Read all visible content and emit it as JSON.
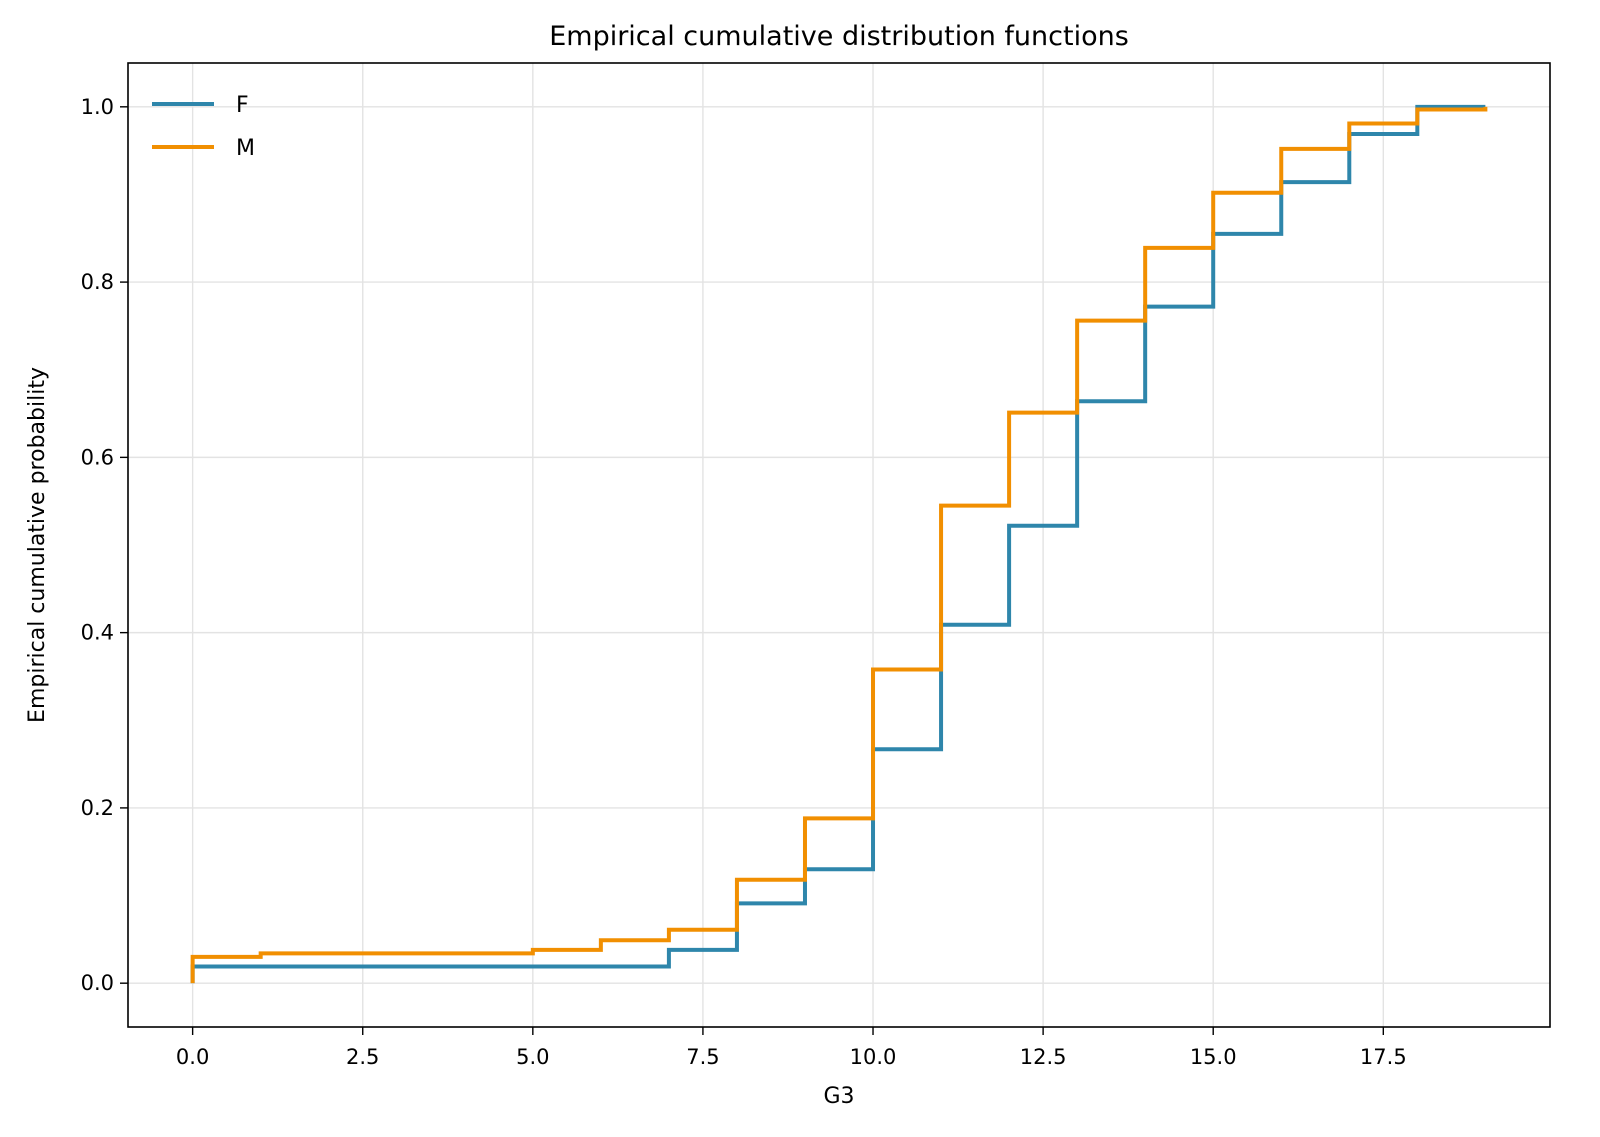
{
  "chart_data": {
    "type": "line",
    "step": "post",
    "title": "Empirical cumulative distribution functions",
    "xlabel": "G3",
    "ylabel": "Empirical cumulative probability",
    "xlim": [
      -0.95,
      19.95
    ],
    "ylim": [
      -0.05,
      1.05
    ],
    "xticks": [
      0.0,
      2.5,
      5.0,
      7.5,
      10.0,
      12.5,
      15.0,
      17.5
    ],
    "xtick_labels": [
      "0.0",
      "2.5",
      "5.0",
      "7.5",
      "10.0",
      "12.5",
      "15.0",
      "17.5"
    ],
    "yticks": [
      0.0,
      0.2,
      0.4,
      0.6,
      0.8,
      1.0
    ],
    "ytick_labels": [
      "0.0",
      "0.2",
      "0.4",
      "0.6",
      "0.8",
      "1.0"
    ],
    "grid": true,
    "legend": "top-left",
    "series": [
      {
        "name": "F",
        "color": "#2e86ab",
        "x": [
          0,
          7,
          8,
          9,
          10,
          11,
          12,
          13,
          14,
          15,
          16,
          17,
          18,
          19
        ],
        "y": [
          0.019,
          0.038,
          0.091,
          0.13,
          0.267,
          0.409,
          0.522,
          0.664,
          0.772,
          0.855,
          0.914,
          0.969,
          1.0,
          1.0
        ]
      },
      {
        "name": "M",
        "color": "#f18f01",
        "x": [
          0,
          1,
          5,
          6,
          7,
          8,
          9,
          10,
          11,
          12,
          13,
          14,
          15,
          16,
          17,
          18,
          19
        ],
        "y": [
          0.03,
          0.034,
          0.038,
          0.049,
          0.061,
          0.118,
          0.188,
          0.358,
          0.545,
          0.651,
          0.756,
          0.839,
          0.902,
          0.952,
          0.981,
          0.997,
          1.0
        ]
      }
    ]
  }
}
